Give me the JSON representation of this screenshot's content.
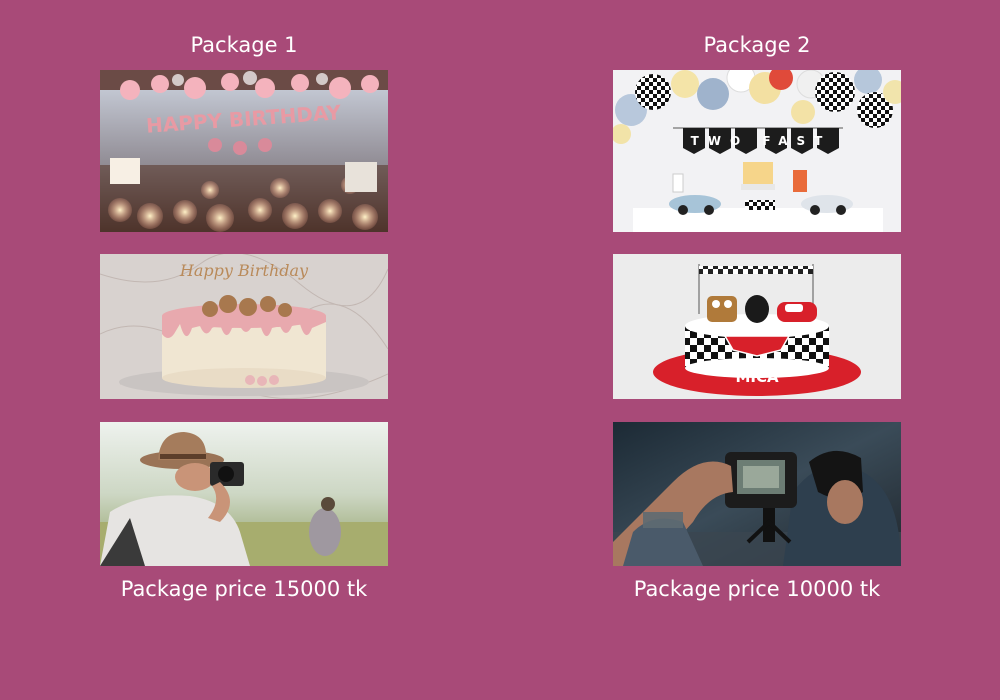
{
  "packages": [
    {
      "title": "Package 1",
      "price_text": "Package price 15000 tk",
      "images": [
        "birthday-decoration-photo",
        "drip-cake-photo",
        "photographer-photo"
      ]
    },
    {
      "title": "Package 2",
      "price_text": "Package price 10000 tk",
      "images": [
        "two-fast-party-photo",
        "cars-cake-photo",
        "photographer-camera-photo"
      ]
    }
  ],
  "image_text": {
    "banner_left": "HAPPY BIRTHDAY",
    "banner_right": "TWO FAST",
    "cake_topper": "Happy Birthday",
    "cake_name": "MICA"
  },
  "colors": {
    "background": "#a84a78",
    "text": "#ffffff"
  }
}
